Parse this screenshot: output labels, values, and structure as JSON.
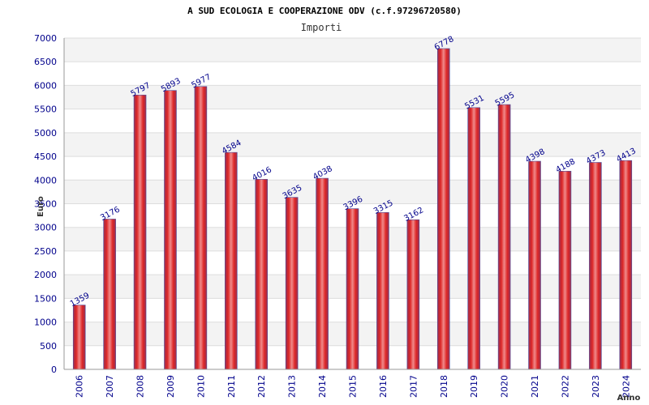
{
  "colors": {
    "bar_center": "#f08a8a",
    "bar_mid": "#dd2626",
    "bar_edge": "#9a3050",
    "bar_outline": "#5050a0",
    "band": "#f3f3f3",
    "gridline": "#dddddd",
    "axis": "#999999",
    "tick_text": "#00008b"
  },
  "chart_data": {
    "type": "bar",
    "title": "A SUD ECOLOGIA E COOPERAZIONE ODV (c.f.97296720580)",
    "subtitle": "Importi",
    "xlabel": "Anno",
    "ylabel": "Euro",
    "ylim": [
      0,
      7000
    ],
    "ytick_step": 500,
    "grid": true,
    "categories": [
      "2006",
      "2007",
      "2008",
      "2009",
      "2010",
      "2011",
      "2012",
      "2013",
      "2014",
      "2015",
      "2016",
      "2017",
      "2018",
      "2019",
      "2020",
      "2021",
      "2022",
      "2023",
      "2024"
    ],
    "values": [
      1359,
      3176,
      5797,
      5893,
      5977,
      4584,
      4016,
      3635,
      4038,
      3396,
      3315,
      3162,
      6778,
      5531,
      5595,
      4398,
      4188,
      4373,
      4413
    ]
  }
}
